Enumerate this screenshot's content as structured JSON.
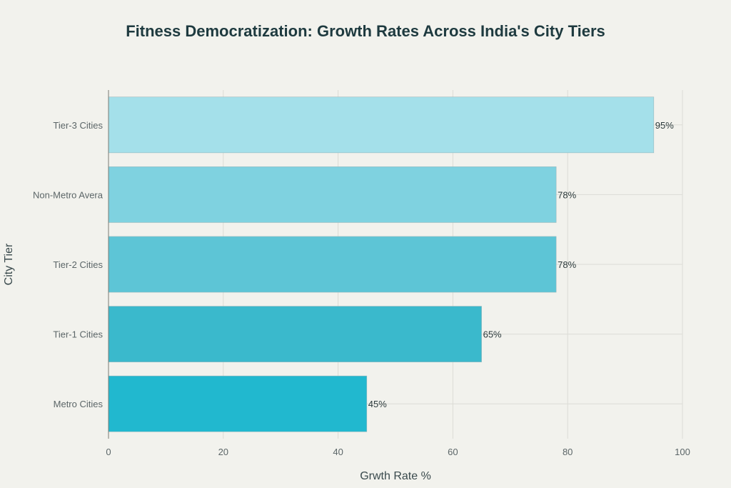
{
  "chart_data": {
    "type": "bar",
    "orientation": "horizontal",
    "title": "Fitness Democratization: Growth Rates Across India's City Tiers",
    "xlabel": "Grwth Rate %",
    "ylabel": "City Tier",
    "categories": [
      "Metro Cities",
      "Tier-1 Cities",
      "Tier-2 Cities",
      "Non-Metro Avera",
      "Tier-3 Cities"
    ],
    "values": [
      45,
      65,
      78,
      78,
      95
    ],
    "data_labels": [
      "45%",
      "65%",
      "78%",
      "78%",
      "95%"
    ],
    "colors": [
      "#21b8cf",
      "#3ab9cc",
      "#5dc5d6",
      "#7fd2e0",
      "#a4e0ea"
    ],
    "xlim": [
      0,
      100
    ],
    "xticks": [
      0,
      20,
      40,
      60,
      80,
      100
    ],
    "xtick_labels": [
      "0",
      "20",
      "40",
      "60",
      "80",
      "100"
    ],
    "grid": true,
    "legend": "none"
  }
}
